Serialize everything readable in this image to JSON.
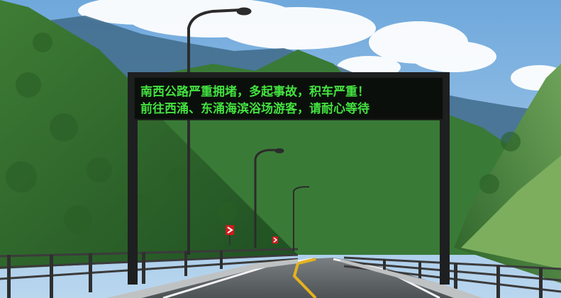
{
  "sign": {
    "line1": "南西公路严重拥堵，多起事故，积车严重！",
    "line2": "前往西涌、东涌海滨浴场游客，请耐心等待"
  },
  "colors": {
    "led_text": "#43e23f",
    "sky": "#7fb3e3",
    "forest": "#2f6b2c",
    "road": "#5f6466",
    "center_line": "#e5b21e"
  }
}
